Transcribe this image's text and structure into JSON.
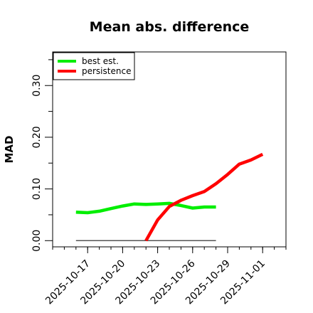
{
  "chart_data": {
    "type": "line",
    "title": "Mean abs. difference",
    "xlabel": "",
    "ylabel": "MAD",
    "xlim": [
      "2025-10-14",
      "2025-11-03"
    ],
    "ylim": [
      -0.012,
      0.365
    ],
    "y_ticks": [
      0.0,
      0.1,
      0.2,
      0.3
    ],
    "y_tick_labels": [
      "0.00",
      "0.10",
      "0.20",
      "0.30"
    ],
    "x_ticks": [
      "2025-10-17",
      "2025-10-20",
      "2025-10-23",
      "2025-10-26",
      "2025-10-29",
      "2025-11-01"
    ],
    "x_tick_labels": [
      "2025-10-17",
      "2025-10-20",
      "2025-10-23",
      "2025-10-26",
      "2025-10-29",
      "2025-11-01"
    ],
    "legend_position": "top-left",
    "grid": false,
    "series": [
      {
        "name": "best est.",
        "color": "#00ee00",
        "x": [
          "2025-10-16",
          "2025-10-17",
          "2025-10-18",
          "2025-10-19",
          "2025-10-20",
          "2025-10-21",
          "2025-10-22",
          "2025-10-23",
          "2025-10-24",
          "2025-10-25",
          "2025-10-26",
          "2025-10-27",
          "2025-10-28"
        ],
        "values": [
          0.055,
          0.054,
          0.057,
          0.062,
          0.067,
          0.071,
          0.07,
          0.071,
          0.072,
          0.068,
          0.063,
          0.065,
          0.065
        ]
      },
      {
        "name": "persistence",
        "color": "#ff0000",
        "x": [
          "2025-10-22",
          "2025-10-23",
          "2025-10-24",
          "2025-10-25",
          "2025-10-26",
          "2025-10-27",
          "2025-10-28",
          "2025-10-29",
          "2025-10-30",
          "2025-10-31",
          "2025-11-01"
        ],
        "values": [
          0.0,
          0.04,
          0.066,
          0.078,
          0.087,
          0.095,
          0.11,
          0.128,
          0.148,
          0.156,
          0.167
        ]
      }
    ],
    "reference_line": {
      "color": "#555555",
      "x": [
        "2025-10-16",
        "2025-10-28"
      ],
      "values": [
        0.0,
        0.0
      ]
    }
  }
}
